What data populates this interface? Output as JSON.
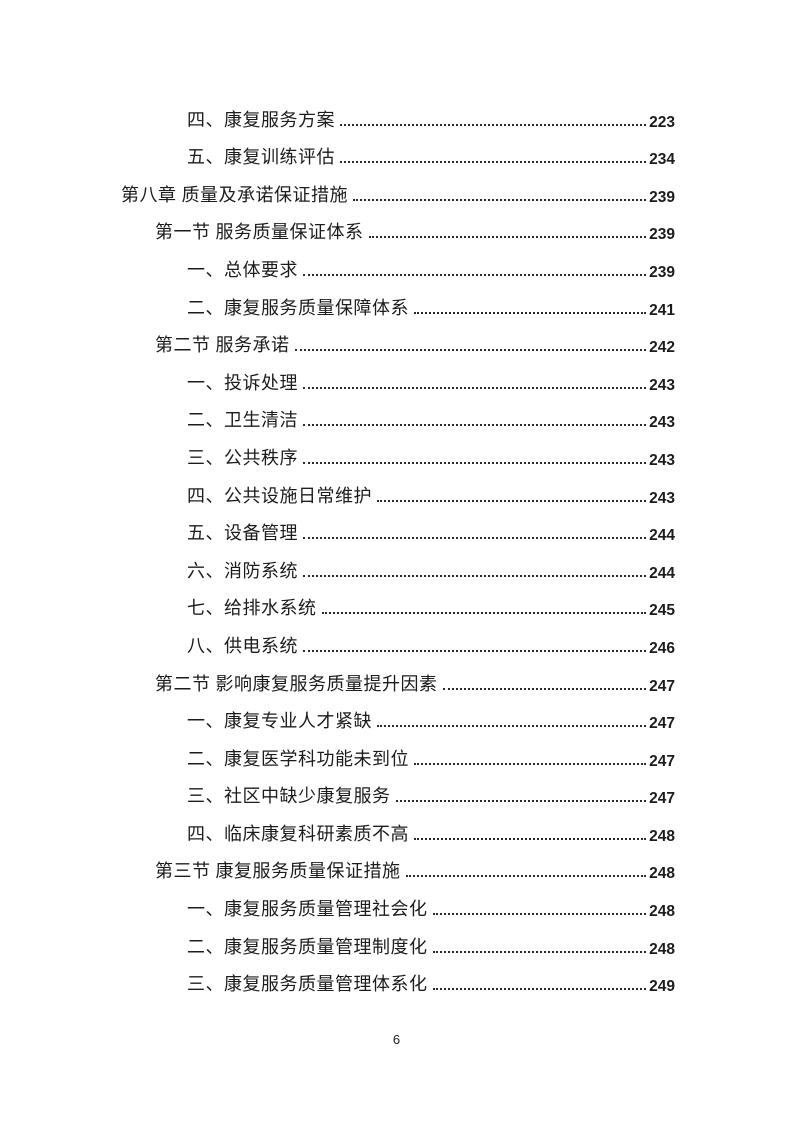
{
  "page": {
    "background_color": "#ffffff",
    "text_color": "#1c1c1c",
    "footer_page_number": "6"
  },
  "toc": {
    "entries": [
      {
        "level": "item",
        "label": "四、康复服务方案",
        "page": "223"
      },
      {
        "level": "item",
        "label": "五、康复训练评估",
        "page": "234"
      },
      {
        "level": "chapter",
        "label": "第八章 质量及承诺保证措施",
        "page": "239"
      },
      {
        "level": "section",
        "label": "第一节 服务质量保证体系",
        "page": "239"
      },
      {
        "level": "item",
        "label": "一、总体要求",
        "page": "239"
      },
      {
        "level": "item",
        "label": "二、康复服务质量保障体系",
        "page": "241"
      },
      {
        "level": "section",
        "label": "第二节 服务承诺",
        "page": "242"
      },
      {
        "level": "item",
        "label": "一、投诉处理",
        "page": "243"
      },
      {
        "level": "item",
        "label": "二、卫生清洁",
        "page": "243"
      },
      {
        "level": "item",
        "label": "三、公共秩序",
        "page": "243"
      },
      {
        "level": "item",
        "label": "四、公共设施日常维护",
        "page": "243"
      },
      {
        "level": "item",
        "label": "五、设备管理",
        "page": "244"
      },
      {
        "level": "item",
        "label": "六、消防系统",
        "page": "244"
      },
      {
        "level": "item",
        "label": "七、给排水系统",
        "page": "245"
      },
      {
        "level": "item",
        "label": "八、供电系统",
        "page": "246"
      },
      {
        "level": "section",
        "label": "第二节 影响康复服务质量提升因素",
        "page": "247"
      },
      {
        "level": "item",
        "label": "一、康复专业人才紧缺",
        "page": "247"
      },
      {
        "level": "item",
        "label": "二、康复医学科功能未到位",
        "page": "247"
      },
      {
        "level": "item",
        "label": "三、社区中缺少康复服务",
        "page": "247"
      },
      {
        "level": "item",
        "label": "四、临床康复科研素质不高",
        "page": "248"
      },
      {
        "level": "section",
        "label": "第三节 康复服务质量保证措施",
        "page": "248"
      },
      {
        "level": "item",
        "label": "一、康复服务质量管理社会化",
        "page": "248"
      },
      {
        "level": "item",
        "label": "二、康复服务质量管理制度化",
        "page": "248"
      },
      {
        "level": "item",
        "label": "三、康复服务质量管理体系化",
        "page": "249"
      }
    ]
  }
}
